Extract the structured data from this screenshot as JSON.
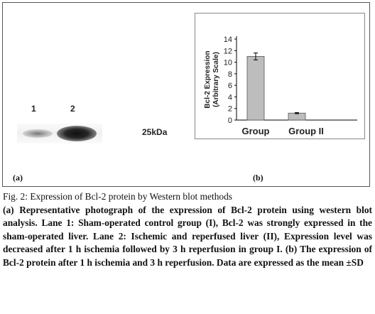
{
  "blot": {
    "lane_labels": [
      "1",
      "2"
    ],
    "marker_label": "25kDa",
    "panel_label": "(a)"
  },
  "chart_data": {
    "type": "bar",
    "categories": [
      "Group",
      "Group II"
    ],
    "values": [
      11.0,
      1.2
    ],
    "errors": [
      0.6,
      0.1
    ],
    "title": "",
    "xlabel": "",
    "ylabel_lines": [
      "Bcl-2 Expression",
      "(Arbitrary Scale)"
    ],
    "ylim": [
      0,
      14
    ],
    "yticks": [
      0,
      2,
      4,
      6,
      8,
      10,
      12,
      14
    ],
    "bar_color": "#bdbdbd",
    "grid": false,
    "panel_label": "(b)"
  },
  "caption": {
    "title": "Fig. 2: Expression of Bcl-2 protein by Western blot methods",
    "body": "(a) Representative photograph of the expression of Bcl-2 protein using western blot analysis. Lane 1: Sham-operated control group (I), Bcl-2 was strongly expressed in the sham-operated liver. Lane 2: Ischemic and reperfused liver (II), Expression level was decreased after 1 h ischemia followed by 3 h reperfusion in group I. (b) The expression of Bcl-2 protein after 1 h ischemia and 3 h reperfusion. Data are expressed as the mean ±SD"
  }
}
